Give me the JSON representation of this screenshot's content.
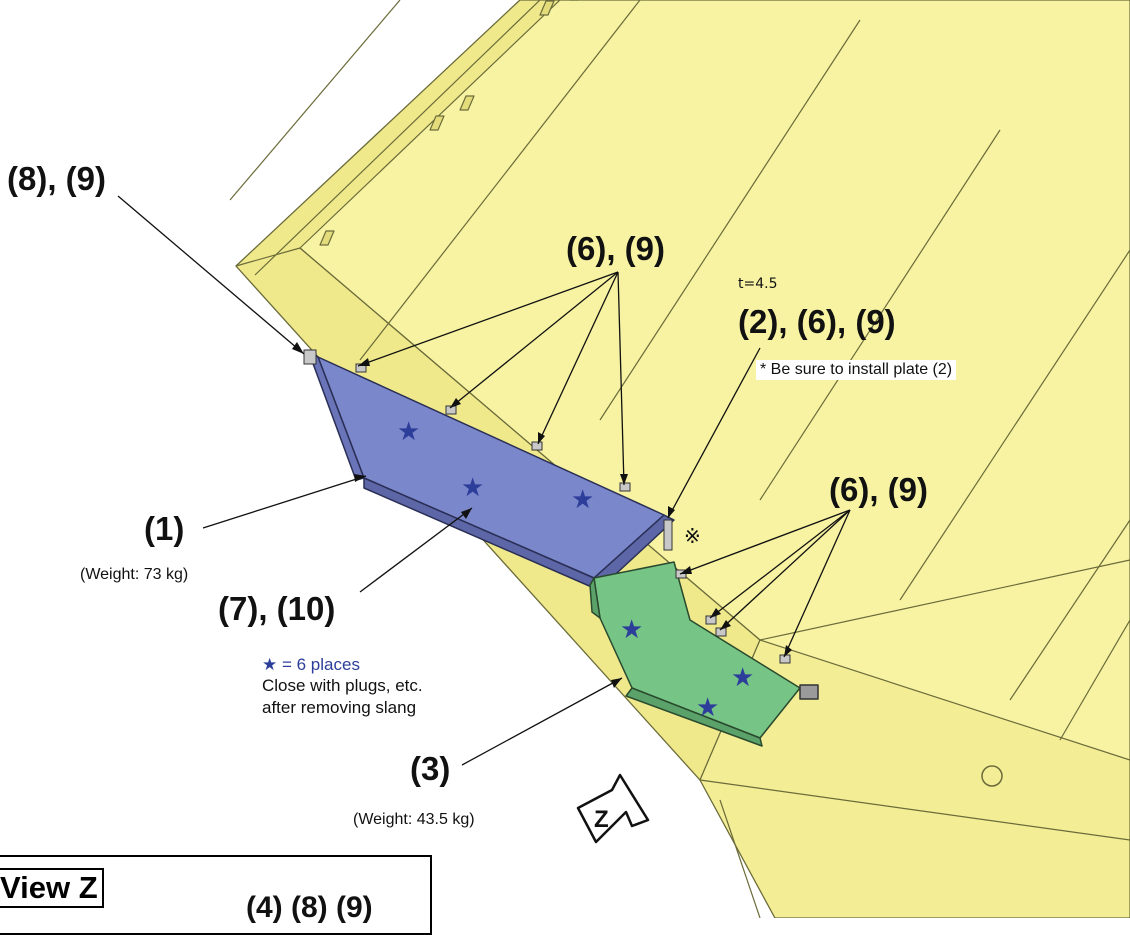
{
  "callouts": {
    "c8_9_top": "(8), (9)",
    "c6_9_top": "(6), (9)",
    "c2_6_9": "(2), (6), (9)",
    "c6_9_right": "(6), (9)",
    "c1": "(1)",
    "c7_10": "(7), (10)",
    "c3": "(3)",
    "c4_8_9": "(4) (8) (9)"
  },
  "notes": {
    "weight_1": "(Weight: 73 kg)",
    "weight_3": "(Weight: 43.5 kg)",
    "thickness": "t=4.5",
    "plate_note": "* Be sure to install plate (2)",
    "ref_mark": "※"
  },
  "legend": {
    "star_symbol": "★",
    "star_text": " = 6 places",
    "line2": "Close with plugs, etc.",
    "line3": "after removing slang"
  },
  "view": {
    "arrow_label": "Z",
    "title": "View Z"
  },
  "colors": {
    "hopper_yellow": "#f7f3a2",
    "cover_blue": "#7b87cb",
    "cover_green": "#76c586",
    "star_blue": "#2c3e9a"
  }
}
